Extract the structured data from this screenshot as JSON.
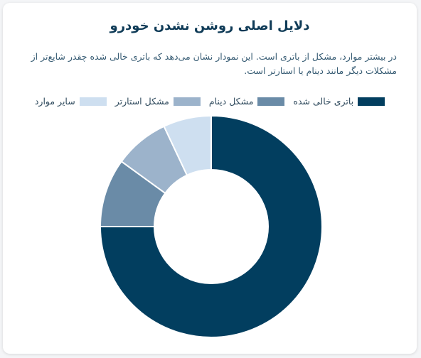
{
  "card": {
    "title": "دلایل اصلی روشن نشدن خودرو",
    "description": "در بیشتر موارد، مشکل از باتری است. این نمودار نشان می‌دهد که باتری خالی شده چقدر شایع‌تر از مشکلات دیگر مانند دینام یا استارتر است."
  },
  "chart_data": {
    "type": "pie",
    "variant": "donut",
    "categories": [
      "باتری خالی شده",
      "مشکل دینام",
      "مشکل استارتر",
      "سایر موارد"
    ],
    "values": [
      75,
      10,
      8,
      7
    ],
    "colors": [
      "#023e5f",
      "#6a8ba7",
      "#9cb3cb",
      "#cedff0"
    ],
    "legend_position": "top",
    "title": "دلایل اصلی روشن نشدن خودرو"
  }
}
